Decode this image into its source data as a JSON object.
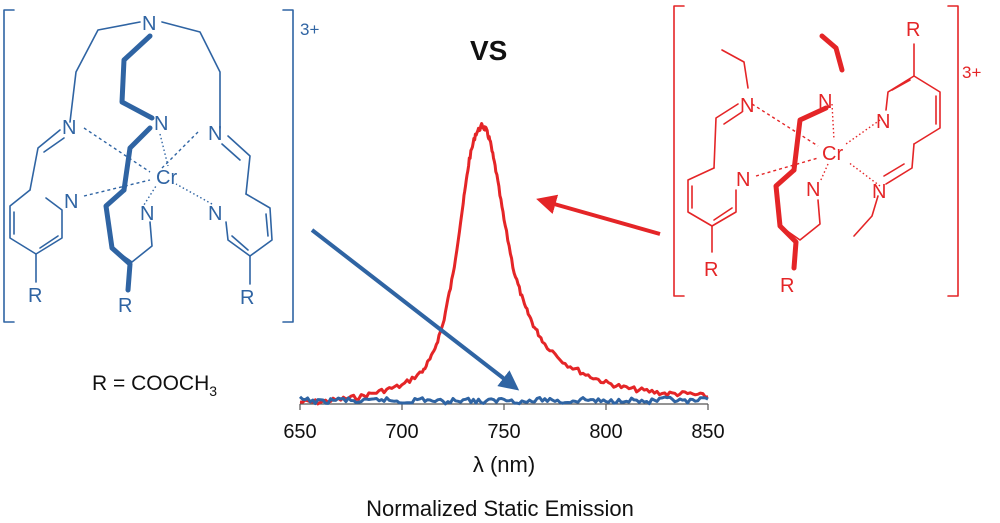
{
  "left_complex": {
    "charge": "3+",
    "metal": "Cr",
    "atoms": [
      "N",
      "N",
      "N",
      "N",
      "N",
      "N",
      "N"
    ],
    "r_labels": [
      "R",
      "R",
      "R"
    ],
    "color": "#2f64a3"
  },
  "right_complex": {
    "charge": "3+",
    "metal": "Cr",
    "atoms": [
      "N",
      "N",
      "N",
      "N",
      "N",
      "N"
    ],
    "r_labels": [
      "R",
      "R",
      "R"
    ],
    "color": "#e42527"
  },
  "vs_label": "VS",
  "r_definition": {
    "main": "R = COOCH",
    "subscript": "3"
  },
  "caption": "Normalized Static Emission",
  "chart_data": {
    "type": "line",
    "xlabel": "λ (nm)",
    "xlim": [
      650,
      850
    ],
    "ylim": [
      0,
      1
    ],
    "x_ticks": [
      "650",
      "700",
      "750",
      "800",
      "850"
    ],
    "series": [
      {
        "color": "#e42527",
        "x": [
          650,
          660,
          670,
          680,
          690,
          700,
          710,
          715,
          720,
          725,
          730,
          733,
          736,
          739,
          741,
          743,
          746,
          750,
          755,
          760,
          765,
          770,
          780,
          790,
          800,
          810,
          820,
          830,
          840,
          850
        ],
        "y": [
          0.0,
          0.0,
          0.01,
          0.02,
          0.04,
          0.06,
          0.11,
          0.17,
          0.28,
          0.46,
          0.72,
          0.88,
          0.97,
          1.0,
          0.99,
          0.95,
          0.84,
          0.66,
          0.47,
          0.35,
          0.27,
          0.21,
          0.14,
          0.1,
          0.07,
          0.05,
          0.04,
          0.03,
          0.03,
          0.02
        ]
      },
      {
        "color": "#2f64a3",
        "x": [
          650,
          660,
          670,
          680,
          690,
          700,
          710,
          720,
          730,
          740,
          750,
          760,
          770,
          780,
          790,
          800,
          810,
          820,
          830,
          840,
          850
        ],
        "y": [
          0.01,
          0.0,
          0.01,
          0.0,
          0.01,
          0.0,
          0.01,
          0.0,
          0.01,
          0.0,
          0.01,
          0.0,
          0.01,
          0.0,
          0.01,
          0.0,
          0.01,
          0.0,
          0.01,
          0.0,
          0.01
        ]
      }
    ]
  }
}
